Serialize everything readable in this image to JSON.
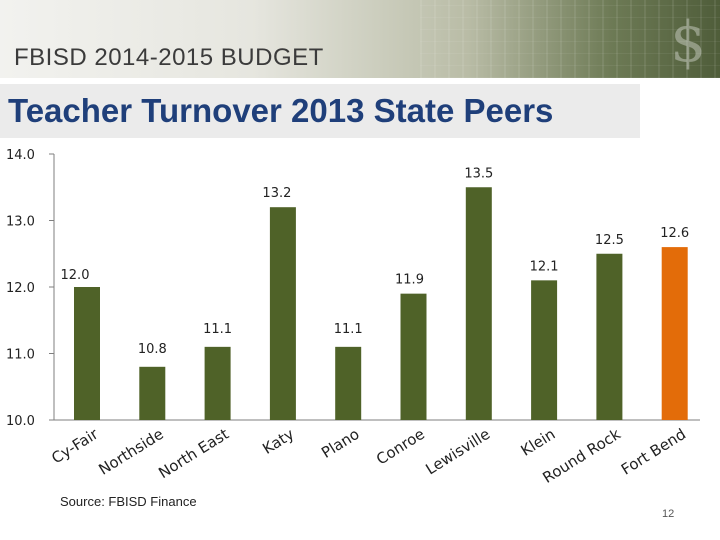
{
  "header": {
    "brand": "FBISD 2014-2015 BUDGET",
    "title": "Teacher Turnover 2013 State Peers"
  },
  "footer": {
    "source": "Source: FBISD Finance",
    "page_number": "12"
  },
  "colors": {
    "bar": "#4f6228",
    "highlight": "#e36c09"
  },
  "chart_data": {
    "type": "bar",
    "title": "",
    "xlabel": "",
    "ylabel": "",
    "ylim": [
      10.0,
      14.0
    ],
    "yticks": [
      "10.0",
      "11.0",
      "12.0",
      "13.0",
      "14.0"
    ],
    "categories": [
      "Cy-Fair",
      "Northside",
      "North East",
      "Katy",
      "Plano",
      "Conroe",
      "Lewisville",
      "Klein",
      "Round Rock",
      "Fort Bend"
    ],
    "values": [
      12.0,
      10.8,
      11.1,
      13.2,
      11.1,
      11.9,
      13.5,
      12.1,
      12.5,
      12.6
    ],
    "labels": [
      "12.0",
      "10.8",
      "11.1",
      "13.2",
      "11.1",
      "11.9",
      "13.5",
      "12.1",
      "12.5",
      "12.6"
    ],
    "highlight_category": "Fort Bend",
    "grid": false,
    "legend": "none"
  }
}
